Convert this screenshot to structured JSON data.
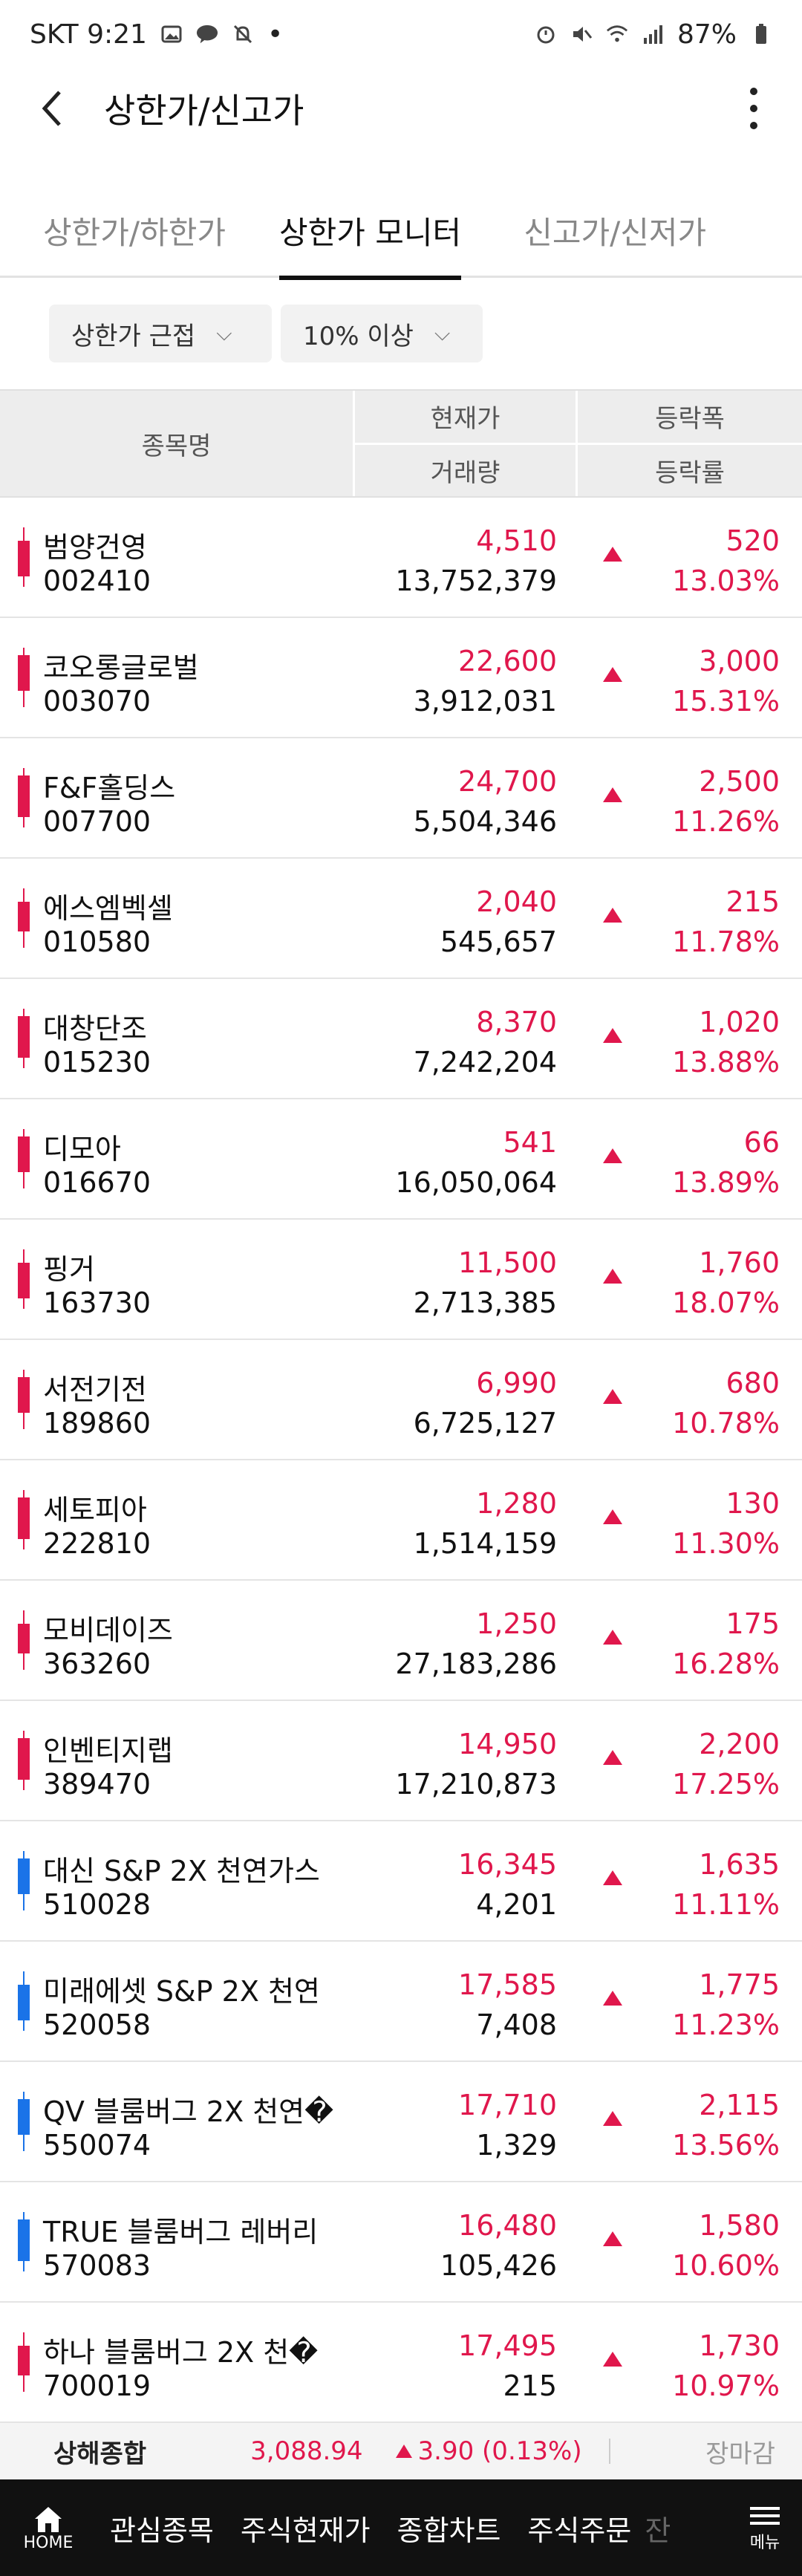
{
  "status_bar": {
    "carrier_time": "SKT 9:21",
    "battery": "87%"
  },
  "appbar": {
    "title": "상한가/신고가"
  },
  "tabs": [
    {
      "label": "상한가/하한가"
    },
    {
      "label": "상한가 모니터"
    },
    {
      "label": "신고가/신저가"
    }
  ],
  "filters": {
    "type": "상한가 근접",
    "threshold": "10% 이상"
  },
  "table_header": {
    "name": "종목명",
    "price": "현재가",
    "volume": "거래량",
    "change": "등락폭",
    "rate": "등락률"
  },
  "rows": [
    {
      "name": "범양건영",
      "code": "002410",
      "price": "4,510",
      "volume": "13,752,379",
      "change": "520",
      "rate": "13.03%",
      "candle": "red"
    },
    {
      "name": "코오롱글로벌",
      "code": "003070",
      "price": "22,600",
      "volume": "3,912,031",
      "change": "3,000",
      "rate": "15.31%",
      "candle": "red"
    },
    {
      "name": "F&F홀딩스",
      "code": "007700",
      "price": "24,700",
      "volume": "5,504,346",
      "change": "2,500",
      "rate": "11.26%",
      "candle": "red"
    },
    {
      "name": "에스엠벡셀",
      "code": "010580",
      "price": "2,040",
      "volume": "545,657",
      "change": "215",
      "rate": "11.78%",
      "candle": "red"
    },
    {
      "name": "대창단조",
      "code": "015230",
      "price": "8,370",
      "volume": "7,242,204",
      "change": "1,020",
      "rate": "13.88%",
      "candle": "red"
    },
    {
      "name": "디모아",
      "code": "016670",
      "price": "541",
      "volume": "16,050,064",
      "change": "66",
      "rate": "13.89%",
      "candle": "red"
    },
    {
      "name": "핑거",
      "code": "163730",
      "price": "11,500",
      "volume": "2,713,385",
      "change": "1,760",
      "rate": "18.07%",
      "candle": "red"
    },
    {
      "name": "서전기전",
      "code": "189860",
      "price": "6,990",
      "volume": "6,725,127",
      "change": "680",
      "rate": "10.78%",
      "candle": "red"
    },
    {
      "name": "세토피아",
      "code": "222810",
      "price": "1,280",
      "volume": "1,514,159",
      "change": "130",
      "rate": "11.30%",
      "candle": "red"
    },
    {
      "name": "모비데이즈",
      "code": "363260",
      "price": "1,250",
      "volume": "27,183,286",
      "change": "175",
      "rate": "16.28%",
      "candle": "red"
    },
    {
      "name": "인벤티지랩",
      "code": "389470",
      "price": "14,950",
      "volume": "17,210,873",
      "change": "2,200",
      "rate": "17.25%",
      "candle": "red"
    },
    {
      "name": "대신 S&P 2X 천연가스",
      "code": "510028",
      "price": "16,345",
      "volume": "4,201",
      "change": "1,635",
      "rate": "11.11%",
      "candle": "blue"
    },
    {
      "name": "미래에셋 S&P 2X 천연",
      "code": "520058",
      "price": "17,585",
      "volume": "7,408",
      "change": "1,775",
      "rate": "11.23%",
      "candle": "blue"
    },
    {
      "name": "QV 블룸버그 2X 천연�",
      "code": "550074",
      "price": "17,710",
      "volume": "1,329",
      "change": "2,115",
      "rate": "13.56%",
      "candle": "blue"
    },
    {
      "name": "TRUE 블룸버그 레버리",
      "code": "570083",
      "price": "16,480",
      "volume": "105,426",
      "change": "1,580",
      "rate": "10.60%",
      "candle": "blue"
    },
    {
      "name": "하나 블룸버그 2X 천�",
      "code": "700019",
      "price": "17,495",
      "volume": "215",
      "change": "1,730",
      "rate": "10.97%",
      "candle": "red"
    }
  ],
  "ticker": {
    "index_name": "상해종합",
    "value": "3,088.94",
    "change": "3.90 (0.13%)",
    "status": "장마감"
  },
  "bottom_nav": {
    "home": "HOME",
    "items": [
      "관심종목",
      "주식현재가",
      "종합차트",
      "주식주문"
    ],
    "cut": "잔",
    "menu": "메뉴"
  },
  "colors": {
    "up": "#e0174c",
    "candle_red": "#e0174c",
    "candle_blue": "#1a73e8"
  }
}
